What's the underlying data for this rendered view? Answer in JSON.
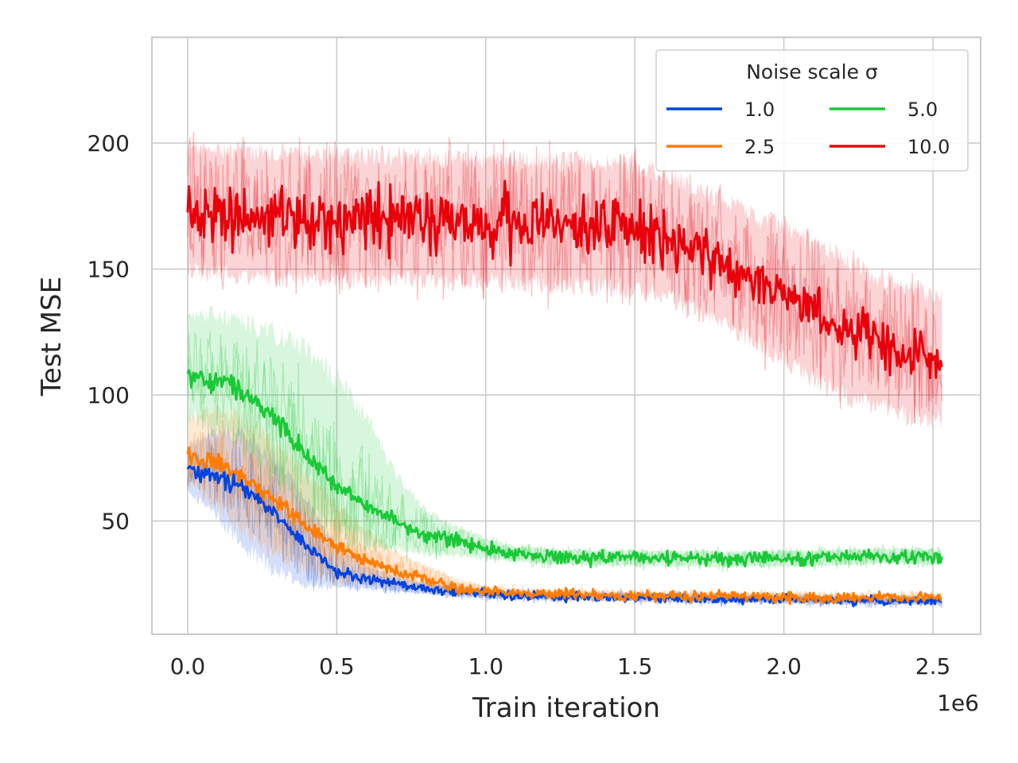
{
  "chart_data": {
    "type": "line",
    "xlabel": "Train iteration",
    "ylabel": "Test MSE",
    "x_offset_label": "1e6",
    "xlim": [
      -0.12,
      2.66
    ],
    "ylim": [
      5,
      242
    ],
    "x_ticks": [
      0.0,
      0.5,
      1.0,
      1.5,
      2.0,
      2.5
    ],
    "x_tick_labels": [
      "0.0",
      "0.5",
      "1.0",
      "1.5",
      "2.0",
      "2.5"
    ],
    "y_ticks": [
      50,
      100,
      150,
      200
    ],
    "y_tick_labels": [
      "50",
      "100",
      "150",
      "200"
    ],
    "grid": true,
    "legend": {
      "title": "Noise scale σ",
      "placement": "top-right",
      "columns": 2
    },
    "x": [
      0.0,
      0.1,
      0.2,
      0.3,
      0.4,
      0.5,
      0.6,
      0.7,
      0.8,
      0.9,
      1.0,
      1.1,
      1.2,
      1.3,
      1.4,
      1.5,
      1.6,
      1.7,
      1.8,
      1.9,
      2.0,
      2.1,
      2.2,
      2.3,
      2.4,
      2.53
    ],
    "series": [
      {
        "name": "1.0",
        "color": "#0343df",
        "noise": 3.2,
        "values": [
          70,
          68,
          62,
          52,
          40,
          30,
          27,
          25,
          23,
          22,
          21,
          20.5,
          20,
          20,
          19.8,
          19.6,
          19.4,
          19.2,
          19,
          19,
          18.8,
          18.6,
          18.5,
          18.4,
          18.3,
          18.2
        ],
        "band_lower": [
          62,
          52,
          38,
          30,
          25,
          24,
          23,
          22,
          21,
          20,
          19.5,
          19,
          18.5,
          18.5,
          18.3,
          18,
          17.8,
          17.6,
          17.5,
          17.5,
          17.3,
          17.1,
          17,
          16.9,
          16.8,
          16.7
        ],
        "band_upper": [
          80,
          86,
          84,
          74,
          58,
          40,
          32,
          28,
          25,
          24,
          23,
          22,
          21.5,
          21.5,
          21.3,
          21.2,
          21,
          20.8,
          20.5,
          20.5,
          20.3,
          20.1,
          20,
          19.9,
          19.8,
          19.7
        ]
      },
      {
        "name": "2.5",
        "color": "#ff7c00",
        "noise": 3.5,
        "values": [
          76,
          73,
          66,
          58,
          48,
          40,
          34,
          30,
          27,
          23,
          22,
          21.5,
          21,
          20.8,
          20.5,
          20.3,
          20.1,
          20,
          20,
          19.9,
          19.8,
          19.6,
          19.5,
          19.5,
          19.4,
          19.5
        ],
        "band_lower": [
          66,
          56,
          44,
          36,
          30,
          26,
          25,
          24,
          23,
          21,
          20.5,
          20,
          19.5,
          19.3,
          19,
          18.8,
          18.6,
          18.5,
          18.5,
          18.4,
          18.3,
          18.1,
          18,
          18,
          17.9,
          18
        ],
        "band_upper": [
          90,
          94,
          90,
          80,
          68,
          56,
          46,
          38,
          32,
          27,
          24,
          23,
          22.5,
          22.3,
          22,
          21.8,
          21.6,
          21.5,
          21.5,
          21.4,
          21.3,
          21.1,
          21,
          21,
          20.9,
          21
        ]
      },
      {
        "name": "5.0",
        "color": "#1ac938",
        "noise": 4.5,
        "values": [
          108,
          106,
          100,
          90,
          76,
          64,
          56,
          50,
          44,
          42,
          39,
          37,
          36,
          35.5,
          35.3,
          35.2,
          35,
          35,
          34.8,
          35,
          35,
          35.2,
          35.5,
          36,
          36,
          35.5
        ],
        "band_lower": [
          92,
          86,
          78,
          66,
          54,
          46,
          42,
          39,
          37,
          36,
          35,
          34,
          33,
          32.5,
          32.3,
          32.2,
          32,
          32,
          31.8,
          32,
          32,
          32.2,
          32.5,
          33,
          33,
          32.5
        ],
        "band_upper": [
          130,
          132,
          128,
          124,
          118,
          106,
          92,
          68,
          54,
          48,
          43,
          40,
          39,
          38.5,
          38.3,
          38.2,
          38,
          38,
          37.8,
          38,
          38,
          38.2,
          38.5,
          39,
          39,
          38.5
        ]
      },
      {
        "name": "10.0",
        "color": "#e8000b",
        "noise": 12,
        "values": [
          172,
          172,
          171,
          171,
          170,
          170,
          170,
          170,
          169,
          169,
          169,
          168,
          168,
          168,
          167,
          166,
          163,
          158,
          152,
          146,
          140,
          133,
          127,
          122,
          117,
          114
        ],
        "band_lower": [
          150,
          148,
          147,
          147,
          146,
          146,
          146,
          146,
          145,
          145,
          145,
          144,
          144,
          144,
          143,
          142,
          139,
          134,
          128,
          122,
          114,
          106,
          100,
          96,
          92,
          90
        ],
        "band_upper": [
          196,
          197,
          196,
          196,
          195,
          195,
          195,
          195,
          194,
          194,
          194,
          193,
          193,
          193,
          192,
          191,
          188,
          183,
          177,
          171,
          166,
          160,
          154,
          148,
          143,
          140
        ]
      }
    ]
  }
}
